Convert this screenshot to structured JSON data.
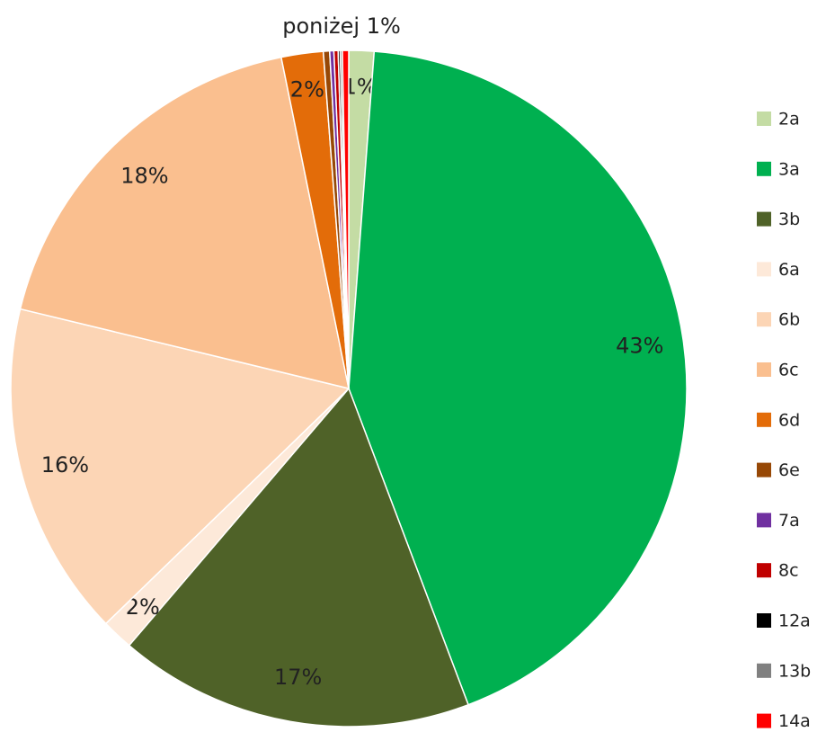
{
  "chart_data": {
    "type": "pie",
    "annotation": "poniżej 1%",
    "categories": [
      "2a",
      "3a",
      "3b",
      "6a",
      "6b",
      "6c",
      "6d",
      "6e",
      "7a",
      "8c",
      "12a",
      "13b",
      "14a"
    ],
    "values": [
      1.2,
      43,
      17,
      1.5,
      16,
      18,
      2,
      0.3,
      0.2,
      0.2,
      0.1,
      0.1,
      0.3
    ],
    "value_labels": [
      "1%",
      "43%",
      "17%",
      "2%",
      "16%",
      "18%",
      "2%",
      null,
      null,
      null,
      null,
      null,
      null
    ],
    "colors": [
      "#c4dca4",
      "#00b050",
      "#4f6228",
      "#fde9d9",
      "#fcd5b5",
      "#fabf8f",
      "#e36c09",
      "#974806",
      "#7030a0",
      "#c00000",
      "#000000",
      "#808080",
      "#ff0000"
    ],
    "legend": "right"
  }
}
